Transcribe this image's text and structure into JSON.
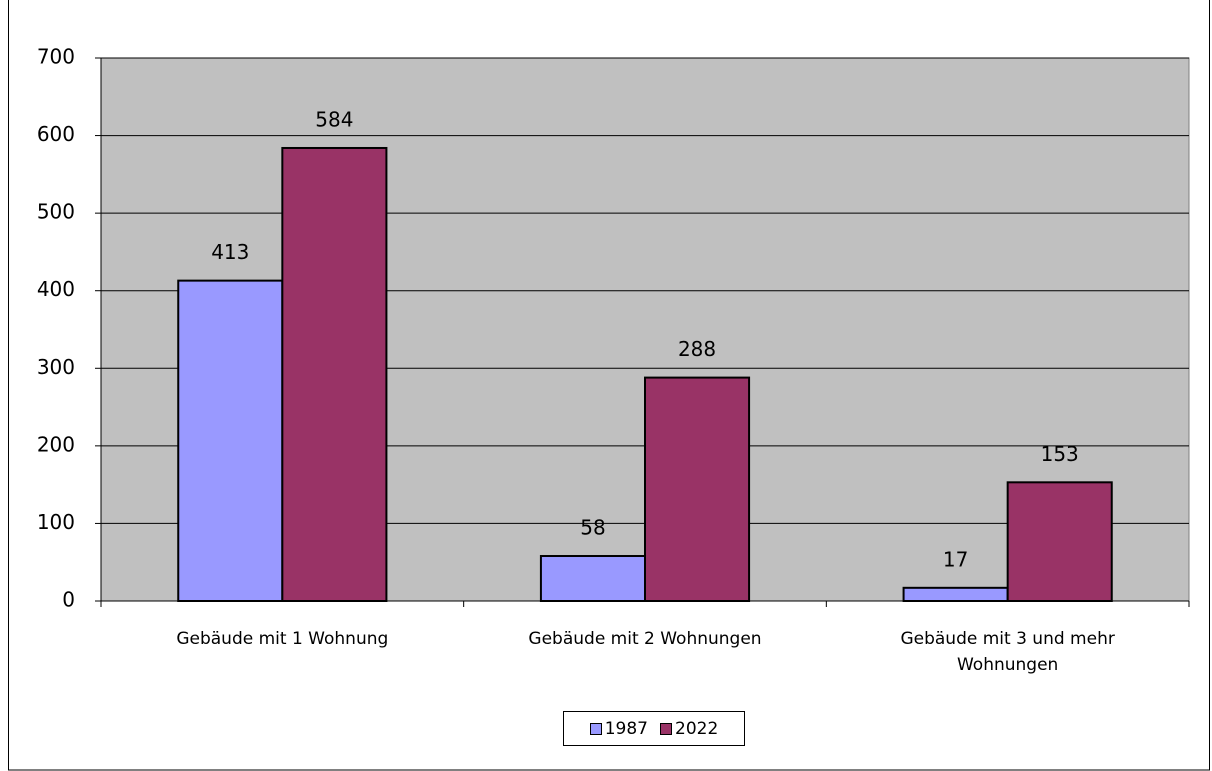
{
  "chart_data": {
    "type": "bar",
    "categories": [
      "Gebäude mit 1 Wohnung",
      "Gebäude mit 2 Wohnungen",
      "Gebäude mit 3 und mehr Wohnungen"
    ],
    "series": [
      {
        "name": "1987",
        "color": "#9999ff",
        "values": [
          413,
          58,
          17
        ]
      },
      {
        "name": "2022",
        "color": "#993366",
        "values": [
          584,
          288,
          153
        ]
      }
    ],
    "ylim": [
      0,
      700
    ],
    "yticks": [
      0,
      100,
      200,
      300,
      400,
      500,
      600,
      700
    ],
    "grid": true,
    "plot_background": "#c0c0c0",
    "legend": "bottom"
  }
}
